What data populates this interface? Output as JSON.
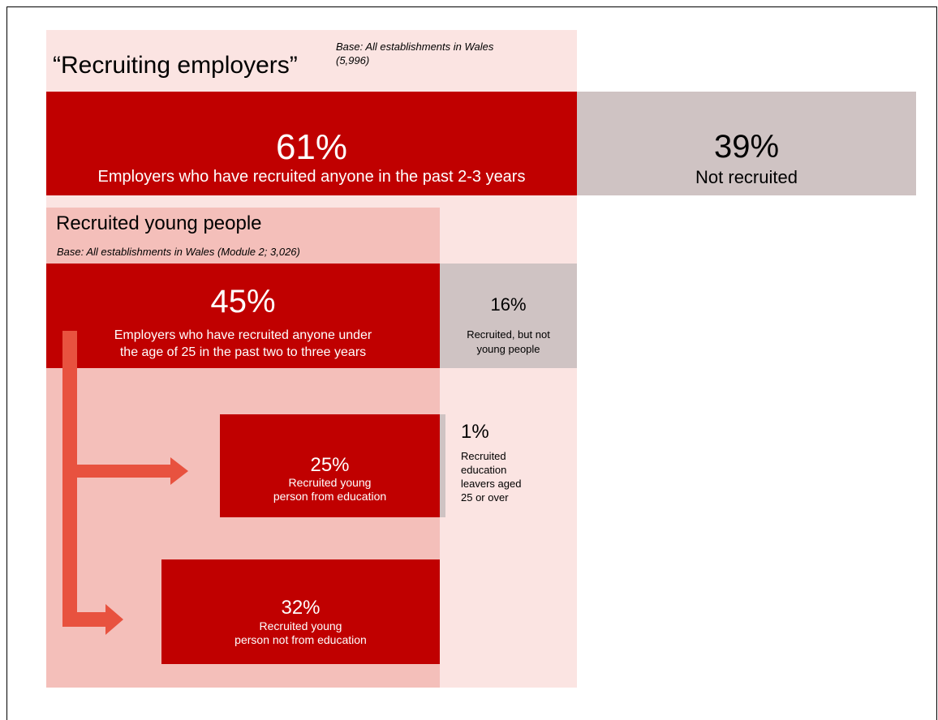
{
  "recruiting": {
    "title": "“Recruiting employers”",
    "base_line1": "Base: All establishments in Wales",
    "base_line2": "(5,996)",
    "recruited_pct": "61%",
    "recruited_label": "Employers who have recruited anyone in the past 2-3 years",
    "not_recruited_pct": "39%",
    "not_recruited_label": "Not recruited"
  },
  "young": {
    "title": "Recruited young people",
    "base": "Base: All establishments in Wales (Module 2; 3,026)",
    "young_pct": "45%",
    "young_label_line1": "Employers who have recruited anyone under",
    "young_label_line2": "the age of 25 in the past two to three years",
    "not_young_pct": "16%",
    "not_young_label_line1": "Recruited, but not",
    "not_young_label_line2": "young people"
  },
  "education": {
    "from_edu_pct": "25%",
    "from_edu_label_line1": "Recruited young",
    "from_edu_label_line2": "person from education",
    "older_pct": "1%",
    "older_label_line1": "Recruited",
    "older_label_line2": "education",
    "older_label_line3": "leavers aged",
    "older_label_line4": "25 or over",
    "not_edu_pct": "32%",
    "not_edu_label_line1": "Recruited young",
    "not_edu_label_line2": "person not from education"
  },
  "colors": {
    "dark_red": "#c00000",
    "light_pink": "#fbe4e2",
    "mid_pink": "#f4bfba",
    "grey": "#cfc3c3",
    "arrow": "#e8523f"
  }
}
